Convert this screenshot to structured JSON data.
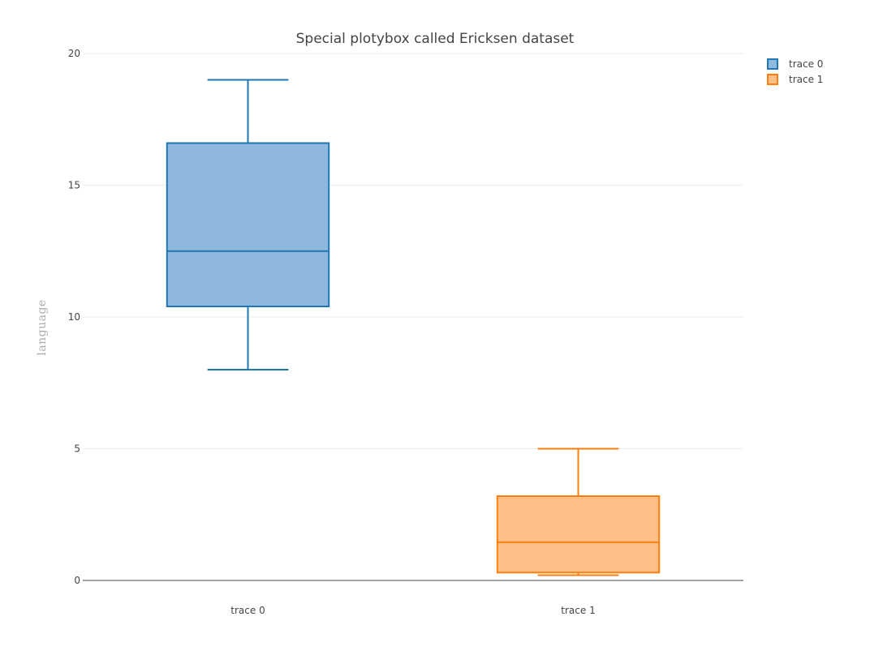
{
  "chart_data": {
    "type": "box",
    "title": "Special plotybox called Ericksen dataset",
    "xlabel": "",
    "ylabel": "language",
    "ylim": [
      0,
      20
    ],
    "yticks": [
      0,
      5,
      10,
      15,
      20
    ],
    "grid": true,
    "legend_position": "top-right",
    "categories": [
      "trace 0",
      "trace 1"
    ],
    "series": [
      {
        "name": "trace 0",
        "color": "#1f77b4",
        "fill": "#8fb9dc",
        "min": 8.0,
        "q1": 10.4,
        "median": 12.5,
        "q3": 16.6,
        "max": 19.0
      },
      {
        "name": "trace 1",
        "color": "#ff7f0e",
        "fill": "#ffbf86",
        "min": 0.2,
        "q1": 0.3,
        "median": 1.45,
        "q3": 3.2,
        "max": 5.0
      }
    ]
  }
}
